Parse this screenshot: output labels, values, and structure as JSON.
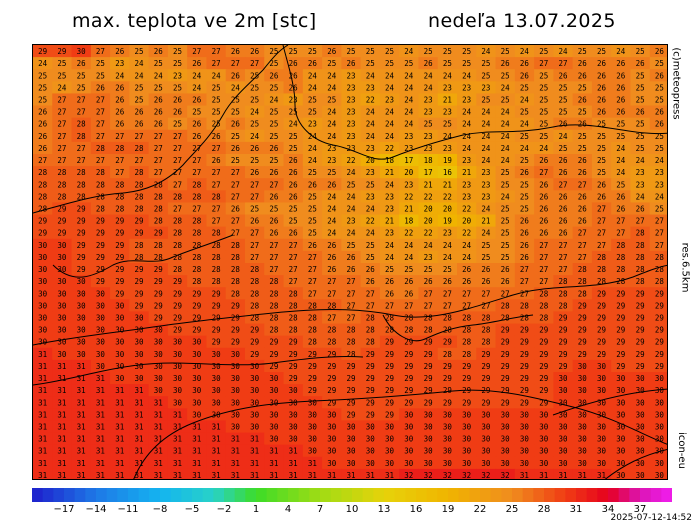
{
  "header": {
    "title": "max. teplota ve 2m [stc]",
    "date": "nedeľa 13.07.2025"
  },
  "side_labels": {
    "credit": "(c)meteopress",
    "resolution": "res.6.5km",
    "model": "icon-eu"
  },
  "footer": {
    "timestamp": "2025-07-12-14:52"
  },
  "colorbar": {
    "labels": [
      "−17",
      "−14",
      "−11",
      "−8",
      "−5",
      "−2",
      "1",
      "4",
      "7",
      "10",
      "13",
      "16",
      "19",
      "22",
      "25",
      "28",
      "31",
      "34",
      "37"
    ],
    "stops": [
      {
        "t": -20,
        "color": "#1e1ecc"
      },
      {
        "t": -14,
        "color": "#1e78e6"
      },
      {
        "t": -8,
        "color": "#14b4f0"
      },
      {
        "t": -3,
        "color": "#28d2c8"
      },
      {
        "t": 1,
        "color": "#3cdc28"
      },
      {
        "t": 7,
        "color": "#a0dc14"
      },
      {
        "t": 13,
        "color": "#e6d20a"
      },
      {
        "t": 19,
        "color": "#f0b400"
      },
      {
        "t": 25,
        "color": "#f08c1e"
      },
      {
        "t": 30,
        "color": "#f03c14"
      },
      {
        "t": 34,
        "color": "#e6001e"
      },
      {
        "t": 37,
        "color": "#dc14b4"
      },
      {
        "t": 40,
        "color": "#f01ef0"
      }
    ]
  },
  "map": {
    "columns": 33,
    "rows": [
      "29 29 30 27 26 25 26 25 27 27 26 26 25 25 25 26 25 25 25 24 25 25 25 24 25 24 25 24 25 25 24 25 26",
      "24 25 26 25 23 24 25 25 26 27 27 27 25 26 26 25 26 25 25 25 26 25 25 25 26 26 27 27 26 26 26 26 25",
      "25 25 25 25 24 24 24 23 24 24 26 25 26 26 24 24 23 24 24 24 24 24 24 25 25 26 25 26 26 26 26 25 26",
      "25 24 25 26 26 25 25 25 24 25 24 25 25 26 24 24 23 23 24 24 24 23 23 23 24 25 25 25 25 26 26 25 25",
      "25 27 27 27 26 25 26 26 26 25 25 25 24 23 25 25 23 22 23 24 23 21 23 25 25 24 25 25 26 26 26 25 25",
      "26 27 27 27 26 26 26 26 25 25 25 24 25 25 25 24 23 24 24 24 23 23 24 24 24 25 25 25 25 26 26 26 26",
      "26 27 28 27 26 26 26 25 26 25 26 25 25 24 23 24 23 24 24 24 25 25 24 24 24 24 25 26 26 25 25 25 26",
      "26 27 28 27 27 27 27 27 26 26 25 24 25 25 24 24 23 24 24 23 23 24 24 24 24 25 25 24 25 25 25 25 25",
      "26 27 27 28 28 28 27 27 27 27 26 26 26 25 24 23 23 23 22 23 23 23 24 24 24 24 24 25 25 25 24 25 25",
      "27 27 27 27 27 27 27 27 27 26 25 25 25 26 24 23 22 20 18 17 18 19 23 24 24 25 26 26 26 25 24 24 24",
      "28 28 28 28 27 28 27 27 27 27 27 26 26 26 25 25 24 23 21 20 17 16 21 23 25 26 27 26 26 25 24 23 23",
      "28 28 28 28 28 28 28 27 28 27 27 27 27 26 26 26 25 25 24 23 21 21 23 23 25 25 26 27 27 26 25 23 23",
      "28 28 28 28 28 28 28 28 28 28 27 27 26 26 25 24 24 23 23 22 22 22 23 23 24 25 26 26 26 26 26 24 24",
      "28 29 29 28 28 28 28 27 27 27 26 25 25 25 25 24 24 24 23 21 20 20 22 24 25 25 26 26 26 27 26 26 25",
      "29 29 29 29 29 29 28 28 28 27 27 26 26 25 25 24 23 22 21 18 20 19 20 21 25 26 26 26 26 27 27 27 27",
      "29 29 29 29 29 29 29 28 28 28 27 27 26 26 25 24 24 24 23 22 22 23 22 24 25 26 26 26 27 27 27 28 27",
      "30 30 29 29 29 28 28 28 28 28 28 27 27 27 26 26 25 25 24 24 24 24 24 25 25 26 27 27 27 27 28 28 27",
      "30 30 29 29 29 28 28 28 28 28 28 27 27 27 27 26 26 25 24 24 23 24 24 25 25 26 27 27 27 28 28 28 28",
      "30 30 29 29 29 29 29 28 28 28 28 28 27 27 27 26 26 26 25 25 25 25 26 26 26 27 27 27 28 28 28 28 28",
      "30 30 30 29 29 29 29 29 28 28 28 28 28 27 27 27 27 26 26 26 26 26 26 26 26 27 27 28 28 28 28 28 28",
      "30 30 30 30 29 29 29 29 29 29 28 28 28 28 27 27 27 27 26 26 27 27 27 27 27 27 28 28 28 29 29 29 29",
      "30 30 30 30 30 29 29 29 29 29 29 28 28 28 28 28 27 27 27 27 27 27 27 27 28 28 28 28 29 29 29 29 29",
      "30 30 30 30 30 30 29 29 29 29 29 28 28 28 28 27 27 28 28 28 28 28 28 28 28 28 28 29 29 29 29 29 29",
      "30 30 30 30 30 30 30 29 29 29 29 29 28 28 28 28 28 28 28 28 28 28 28 28 29 29 29 29 29 29 29 29 29",
      "30 30 30 30 30 30 30 30 30 29 29 29 29 29 28 28 28 28 29 29 29 29 28 28 29 29 29 29 29 29 29 29 29",
      "31 30 30 30 30 30 30 30 30 30 30 29 29 29 29 29 28 29 29 29 29 28 28 29 29 29 29 29 29 29 29 29 29",
      "31 31 31 30 30 30 30 30 30 30 30 30 29 29 29 29 29 29 29 29 29 29 29 29 29 29 29 29 30 30 29 29 29",
      "31 31 31 31 30 30 30 30 30 30 30 30 30 29 29 29 29 29 29 29 29 29 29 29 29 29 29 30 30 30 30 30 30",
      "31 31 31 31 31 31 30 30 30 30 30 30 30 30 29 29 29 29 29 29 29 29 29 29 29 29 29 30 30 30 30 30 30",
      "31 31 31 31 31 31 31 30 30 30 30 30 30 30 30 29 29 29 29 29 29 29 29 29 29 29 29 30 30 30 30 30 30",
      "31 31 31 31 31 31 31 31 30 30 30 30 30 30 30 30 29 29 29 30 30 30 30 30 30 30 30 30 30 30 30 30 30",
      "31 31 31 31 31 31 31 31 31 31 30 30 30 30 30 30 30 30 30 30 30 30 30 30 30 30 30 30 30 30 30 30 30",
      "31 31 31 31 31 31 31 31 31 31 31 31 30 30 30 30 30 30 30 30 30 30 30 30 30 30 30 30 30 30 30 30 30",
      "31 31 31 31 31 31 31 31 31 31 31 31 31 31 30 30 30 30 30 30 30 30 30 30 30 30 30 30 30 30 30 30 30",
      "31 31 31 31 31 31 31 31 31 31 31 31 31 31 31 30 30 30 30 30 30 30 30 30 30 30 30 30 30 30 30 30 30",
      "31 31 31 31 31 31 31 31 31 31 31 31 31 31 31 31 31 31 31 32 32 32 32 32 32 31 31 31 31 31 30 30 30"
    ]
  }
}
